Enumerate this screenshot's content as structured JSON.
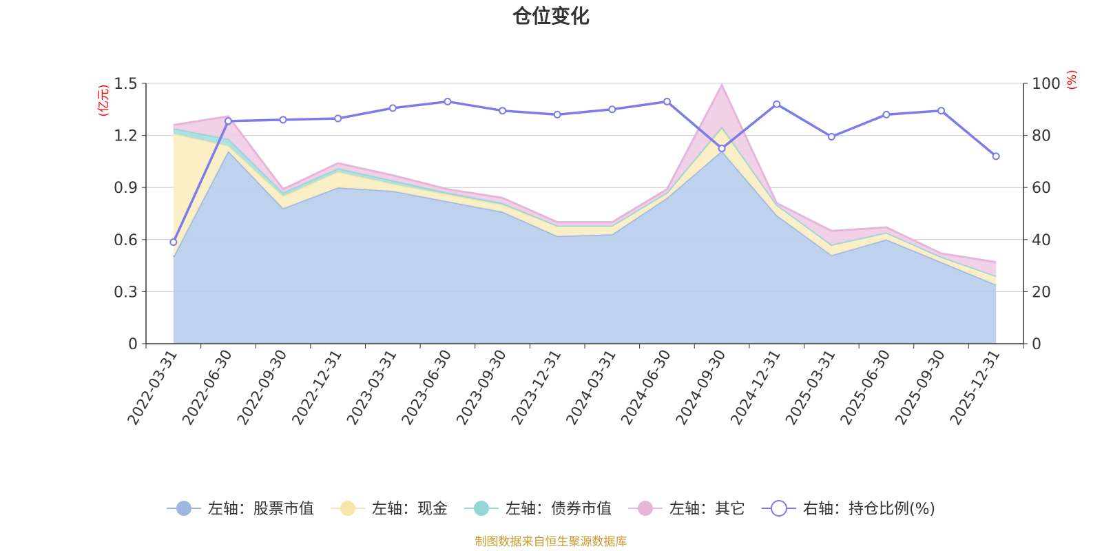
{
  "chart_data": {
    "type": "area",
    "title": "仓位变化",
    "left_axis_unit": "(亿元)",
    "right_axis_unit": "(%)",
    "left_ticks": [
      "0",
      "0.3",
      "0.6",
      "0.9",
      "1.2",
      "1.5"
    ],
    "right_ticks": [
      "0",
      "20",
      "40",
      "60",
      "80",
      "100"
    ],
    "ylim_left": [
      0,
      1.5
    ],
    "ylim_right": [
      0,
      100
    ],
    "categories": [
      "2022-03-31",
      "2022-06-30",
      "2022-09-30",
      "2022-12-31",
      "2023-03-31",
      "2023-06-30",
      "2023-09-30",
      "2023-12-31",
      "2024-03-31",
      "2024-06-30",
      "2024-09-30",
      "2024-12-31",
      "2025-03-31",
      "2025-06-30",
      "2025-09-30",
      "2025-12-31"
    ],
    "stacked_series": [
      {
        "name": "左轴：股票市值",
        "color": "#9db7e0",
        "fill": "#b8cdeb",
        "values": [
          0.5,
          1.11,
          0.78,
          0.9,
          0.88,
          0.82,
          0.76,
          0.62,
          0.63,
          0.84,
          1.11,
          0.74,
          0.51,
          0.6,
          0.47,
          0.34
        ]
      },
      {
        "name": "左轴：现金",
        "color": "#f7e6a8",
        "fill": "#fbeec3",
        "values": [
          0.71,
          0.03,
          0.07,
          0.09,
          0.04,
          0.04,
          0.04,
          0.06,
          0.05,
          0.03,
          0.13,
          0.06,
          0.06,
          0.04,
          0.03,
          0.05
        ]
      },
      {
        "name": "左轴：债券市值",
        "color": "#92d6d6",
        "fill": "#a7dede",
        "values": [
          0.03,
          0.04,
          0.02,
          0.02,
          0.02,
          0.01,
          0.01,
          0.0,
          0.0,
          0.0,
          0.01,
          0.0,
          0.0,
          0.0,
          0.0,
          0.0
        ]
      },
      {
        "name": "左轴：其它",
        "color": "#e6b6da",
        "fill": "#efcde6",
        "values": [
          0.02,
          0.13,
          0.02,
          0.03,
          0.03,
          0.02,
          0.03,
          0.02,
          0.02,
          0.02,
          0.24,
          0.01,
          0.08,
          0.03,
          0.02,
          0.08
        ]
      }
    ],
    "line_series": {
      "name": "右轴：持仓比例(%)",
      "color": "#7b7bea",
      "values": [
        39,
        85.5,
        86,
        86.5,
        90.5,
        93,
        89.5,
        88,
        90,
        93,
        75,
        92,
        79.5,
        88,
        89.5,
        72
      ]
    },
    "source": "制图数据来自恒生聚源数据库"
  }
}
